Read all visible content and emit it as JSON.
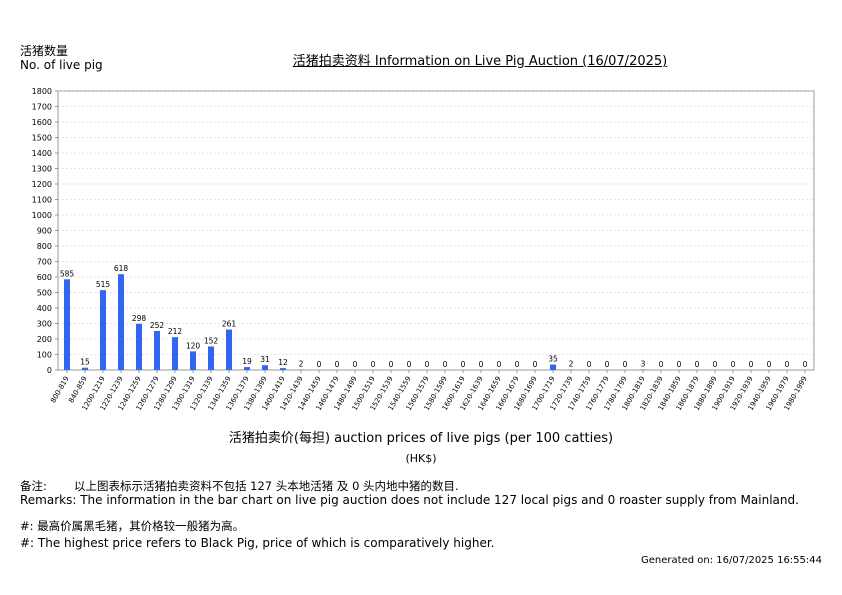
{
  "header": {
    "ylabel_zh": "活猪数量",
    "ylabel_en": "No. of live pig",
    "title": "活猪拍卖资料 Information on Live Pig Auction (16/07/2025)"
  },
  "axis": {
    "xlabel": "活猪拍卖价(每担) auction prices of live pigs (per 100 catties)",
    "unit": "(HK$)"
  },
  "remarks": {
    "zh_label": "备注:",
    "zh": "以上图表标示活猪拍卖资料不包括 127 头本地活猪 及 0 头内地中猪的数目.",
    "en": "Remarks: The information in the bar chart on live pig auction does not include 127 local pigs and 0 roaster supply from Mainland.",
    "note_zh": "#: 最高价属黑毛猪，其价格较一般猪为高。",
    "note_en": "#: The highest price refers to Black Pig, price of which is comparatively higher."
  },
  "footer": {
    "generated": "Generated on: 16/07/2025 16:55:44"
  },
  "colors": {
    "bar": "#3366ee",
    "grid": "#cccccc",
    "axis": "#999999"
  },
  "chart_data": {
    "type": "bar",
    "categories": [
      "800-819",
      "840-859",
      "1200-1219",
      "1220-1239",
      "1240-1259",
      "1260-1279",
      "1280-1299",
      "1300-1319",
      "1320-1339",
      "1340-1359",
      "1360-1379",
      "1380-1399",
      "1400-1419",
      "1420-1439",
      "1440-1459",
      "1460-1479",
      "1480-1499",
      "1500-1519",
      "1520-1539",
      "1540-1559",
      "1560-1579",
      "1580-1599",
      "1600-1619",
      "1620-1639",
      "1640-1659",
      "1660-1679",
      "1680-1699",
      "1700-1719",
      "1720-1739",
      "1740-1759",
      "1760-1779",
      "1780-1799",
      "1800-1819",
      "1820-1839",
      "1840-1859",
      "1860-1879",
      "1880-1899",
      "1900-1919",
      "1920-1939",
      "1940-1959",
      "1960-1979",
      "1980-1999"
    ],
    "values": [
      585,
      15,
      515,
      618,
      298,
      252,
      212,
      120,
      152,
      261,
      19,
      31,
      12,
      2,
      0,
      0,
      0,
      0,
      0,
      0,
      0,
      0,
      0,
      0,
      0,
      0,
      0,
      35,
      2,
      0,
      0,
      0,
      3,
      0,
      0,
      0,
      0,
      0,
      0,
      0,
      0,
      0
    ],
    "yticks": [
      0,
      100,
      200,
      300,
      400,
      500,
      600,
      700,
      800,
      900,
      1000,
      1100,
      1200,
      1300,
      1400,
      1500,
      1600,
      1700,
      1800
    ],
    "ylim": [
      0,
      1800
    ],
    "grid": true
  }
}
